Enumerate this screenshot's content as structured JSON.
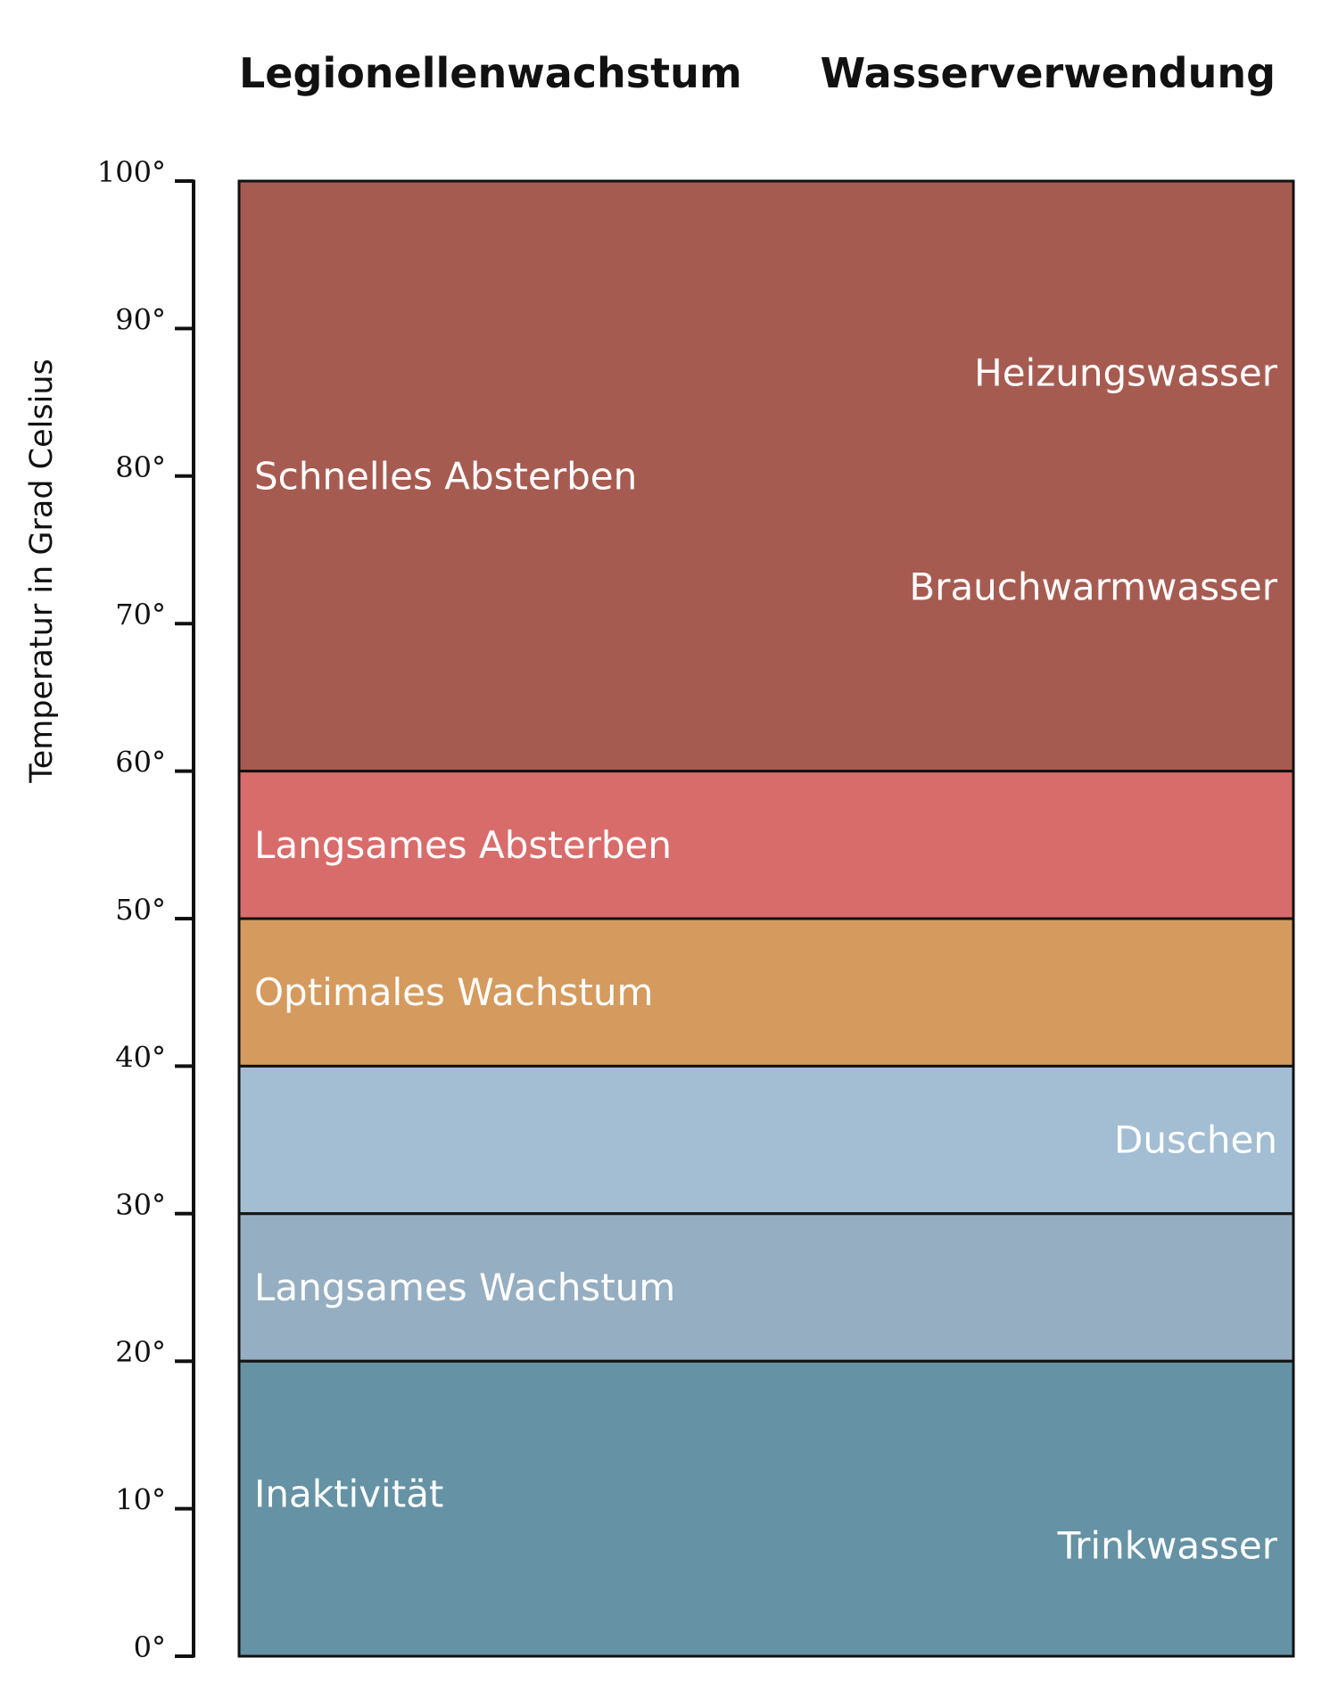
{
  "chart_data": {
    "type": "bar",
    "headers": {
      "left": "Legionellenwachstum",
      "right": "Wasserverwendung"
    },
    "ylabel": "Temperatur in Grad Celsius",
    "ylim": [
      0,
      100
    ],
    "yticks": [
      {
        "value": 0,
        "label": "0°"
      },
      {
        "value": 10,
        "label": "10°"
      },
      {
        "value": 20,
        "label": "20°"
      },
      {
        "value": 30,
        "label": "30°"
      },
      {
        "value": 40,
        "label": "40°"
      },
      {
        "value": 50,
        "label": "50°"
      },
      {
        "value": 60,
        "label": "60°"
      },
      {
        "value": 70,
        "label": "70°"
      },
      {
        "value": 80,
        "label": "80°"
      },
      {
        "value": 90,
        "label": "90°"
      },
      {
        "value": 100,
        "label": "100°"
      }
    ],
    "bands": [
      {
        "from": 60,
        "to": 100,
        "color": "#a65b51"
      },
      {
        "from": 50,
        "to": 60,
        "color": "#d86c6b"
      },
      {
        "from": 40,
        "to": 50,
        "color": "#d59a5e"
      },
      {
        "from": 30,
        "to": 40,
        "color": "#a3bdd3"
      },
      {
        "from": 20,
        "to": 30,
        "color": "#95aec2"
      },
      {
        "from": 0,
        "to": 20,
        "color": "#6592a4"
      }
    ],
    "growth_labels": [
      {
        "text": "Schnelles Absterben",
        "value": 80
      },
      {
        "text": "Langsames Absterben",
        "value": 55
      },
      {
        "text": "Optimales Wachstum",
        "value": 45
      },
      {
        "text": "Langsames Wachstum",
        "value": 25
      },
      {
        "text": "Inaktivität",
        "value": 11
      }
    ],
    "usage_labels": [
      {
        "text": "Heizungswasser",
        "value": 87
      },
      {
        "text": "Brauchwarmwasser",
        "value": 72.5
      },
      {
        "text": "Duschen",
        "value": 35
      },
      {
        "text": "Trinkwasser",
        "value": 7.5
      }
    ]
  }
}
